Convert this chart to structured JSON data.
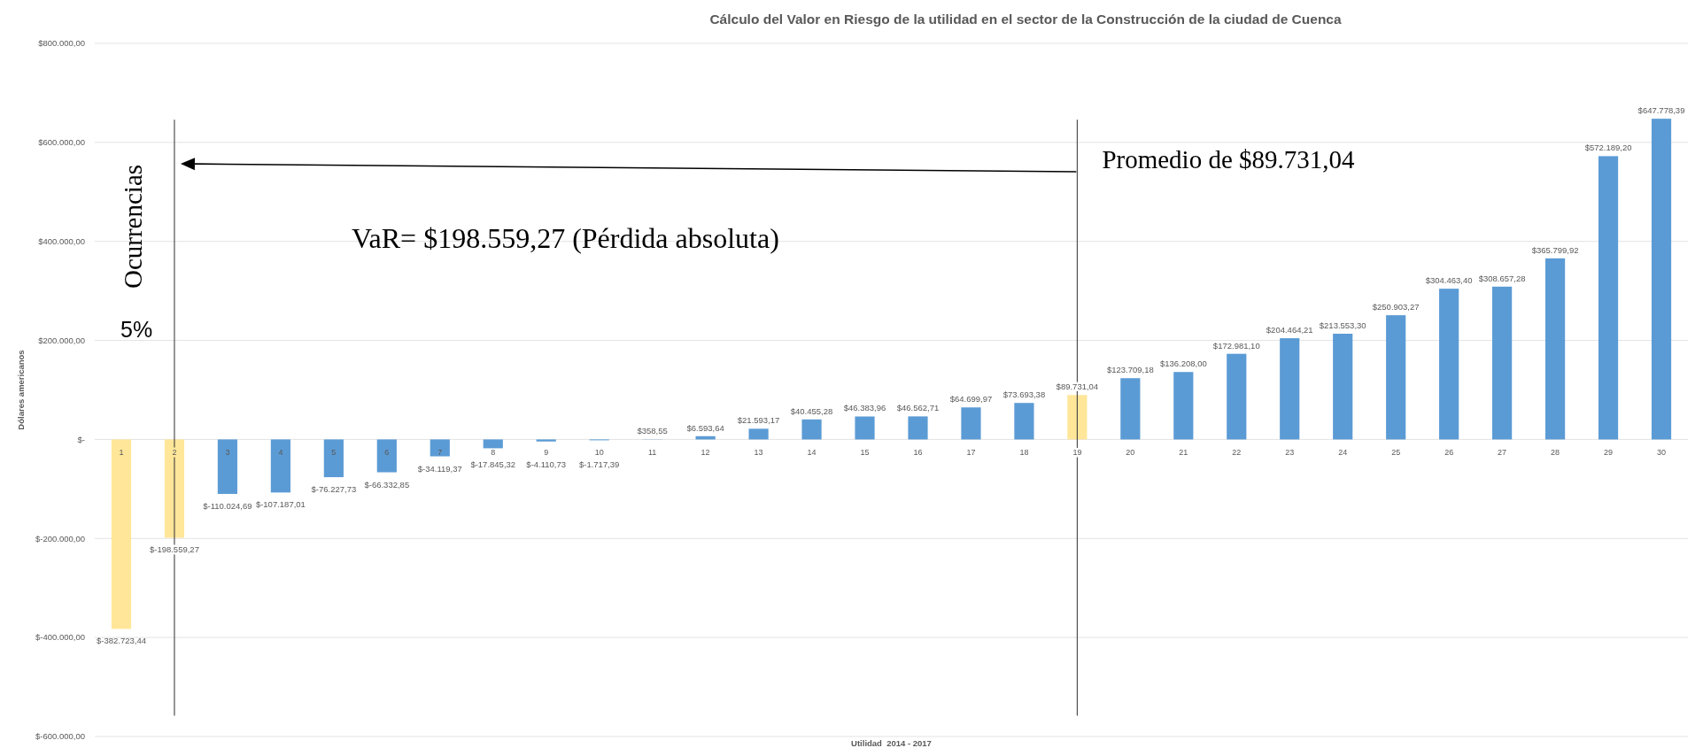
{
  "chart_data": {
    "type": "bar",
    "title": "Cálculo del Valor en Riesgo de la utilidad en el sector de la Construcción de la ciudad de Cuenca",
    "xlabel": "Utilidad  2014 - 2017",
    "ylabel": "Dólares americanos",
    "categories": [
      "1",
      "2",
      "3",
      "4",
      "5",
      "6",
      "7",
      "8",
      "9",
      "10",
      "11",
      "12",
      "13",
      "14",
      "15",
      "16",
      "17",
      "18",
      "19",
      "20",
      "21",
      "22",
      "23",
      "24",
      "25",
      "26",
      "27",
      "28",
      "29",
      "30"
    ],
    "values": [
      -382723.44,
      -198559.27,
      -110024.69,
      -107187.01,
      -76227.73,
      -66332.85,
      -34119.37,
      -17845.32,
      -4110.73,
      -1717.39,
      358.55,
      6593.64,
      21593.17,
      40455.28,
      46383.96,
      46562.71,
      64699.97,
      73693.38,
      89731.04,
      123709.18,
      136208.0,
      172981.1,
      204464.21,
      213553.3,
      250903.27,
      304463.4,
      308657.28,
      365799.92,
      572189.2,
      647778.39
    ],
    "colors": [
      "#ffe699",
      "#ffe699",
      "#5b9bd5",
      "#5b9bd5",
      "#5b9bd5",
      "#5b9bd5",
      "#5b9bd5",
      "#5b9bd5",
      "#5b9bd5",
      "#5b9bd5",
      "#5b9bd5",
      "#5b9bd5",
      "#5b9bd5",
      "#5b9bd5",
      "#5b9bd5",
      "#5b9bd5",
      "#5b9bd5",
      "#5b9bd5",
      "#ffe699",
      "#5b9bd5",
      "#5b9bd5",
      "#5b9bd5",
      "#5b9bd5",
      "#5b9bd5",
      "#5b9bd5",
      "#5b9bd5",
      "#5b9bd5",
      "#5b9bd5",
      "#5b9bd5",
      "#5b9bd5"
    ],
    "value_labels": [
      "$-382.723,44",
      "$-198.559,27",
      "$-110.024,69",
      "$-107.187,01",
      "$-76.227,73",
      "$-66.332,85",
      "$-34.119,37",
      "$-17.845,32",
      "$-4.110,73",
      "$-1.717,39",
      "$358,55",
      "$6.593,64",
      "$21.593,17",
      "$40.455,28",
      "$46.383,96",
      "$46.562,71",
      "$64.699,97",
      "$73.693,38",
      "$89.731,04",
      "$123.709,18",
      "$136.208,00",
      "$172.981,10",
      "$204.464,21",
      "$213.553,30",
      "$250.903,27",
      "$304.463,40",
      "$308.657,28",
      "$365.799,92",
      "$572.189,20",
      "$647.778,39"
    ],
    "ylim": [
      -600000,
      800000
    ],
    "yticks": [
      {
        "value": -600000,
        "label": "$-600.000,00"
      },
      {
        "value": -400000,
        "label": "$-400.000,00"
      },
      {
        "value": -200000,
        "label": "$-200.000,00"
      },
      {
        "value": 0,
        "label": "$-"
      },
      {
        "value": 200000,
        "label": "$200.000,00"
      },
      {
        "value": 400000,
        "label": "$400.000,00"
      },
      {
        "value": 600000,
        "label": "$600.000,00"
      },
      {
        "value": 800000,
        "label": "$800.000,00"
      }
    ],
    "grid": "y",
    "ref_lines": [
      {
        "axis": "x",
        "value": "2",
        "color": "#404040"
      },
      {
        "axis": "x",
        "value": "19",
        "label": "Promedio de $89.731,04",
        "color": "#404040"
      }
    ],
    "annotations": [
      "Ocurrencias",
      "5%",
      "VaR= $198.559,27 (Pérdida absoluta)"
    ]
  }
}
